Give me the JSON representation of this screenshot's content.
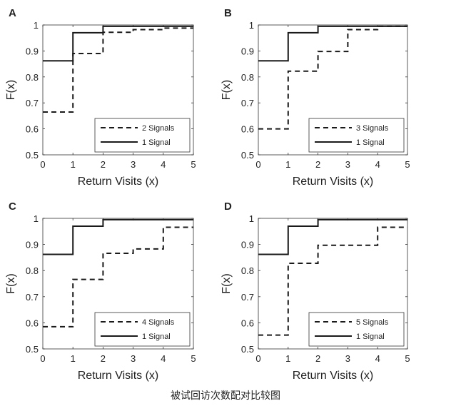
{
  "caption": "被试回访次数配对比较图",
  "chart_data": [
    {
      "type": "line",
      "step": true,
      "panel_label": "A",
      "xlabel": "Return Visits (x)",
      "ylabel": "F(x)",
      "xlim": [
        0,
        5
      ],
      "ylim": [
        0.5,
        1
      ],
      "xticks": [
        0,
        1,
        2,
        3,
        4,
        5
      ],
      "yticks": [
        0.5,
        0.6,
        0.7,
        0.8,
        0.9,
        1
      ],
      "legend_position": "bottom-right",
      "series": [
        {
          "name": "2 Signals",
          "style": "dashed",
          "x": [
            0,
            1,
            2,
            3,
            4,
            5
          ],
          "y": [
            0.665,
            0.89,
            0.972,
            0.982,
            0.988,
            0.988
          ]
        },
        {
          "name": "1 Signal",
          "style": "solid",
          "x": [
            0,
            1,
            2,
            3,
            4,
            5
          ],
          "y": [
            0.862,
            0.97,
            0.995,
            0.995,
            0.995,
            0.995
          ]
        }
      ]
    },
    {
      "type": "line",
      "step": true,
      "panel_label": "B",
      "xlabel": "Return Visits (x)",
      "ylabel": "F(x)",
      "xlim": [
        0,
        5
      ],
      "ylim": [
        0.5,
        1
      ],
      "xticks": [
        0,
        1,
        2,
        3,
        4,
        5
      ],
      "yticks": [
        0.5,
        0.6,
        0.7,
        0.8,
        0.9,
        1
      ],
      "legend_position": "bottom-right",
      "series": [
        {
          "name": "3 Signals",
          "style": "dashed",
          "x": [
            0,
            1,
            2,
            3,
            4,
            5
          ],
          "y": [
            0.6,
            0.822,
            0.898,
            0.982,
            0.995,
            0.995
          ]
        },
        {
          "name": "1 Signal",
          "style": "solid",
          "x": [
            0,
            1,
            2,
            3,
            4,
            5
          ],
          "y": [
            0.862,
            0.97,
            0.995,
            0.995,
            0.995,
            0.995
          ]
        }
      ]
    },
    {
      "type": "line",
      "step": true,
      "panel_label": "C",
      "xlabel": "Return Visits (x)",
      "ylabel": "F(x)",
      "xlim": [
        0,
        5
      ],
      "ylim": [
        0.5,
        1
      ],
      "xticks": [
        0,
        1,
        2,
        3,
        4,
        5
      ],
      "yticks": [
        0.5,
        0.6,
        0.7,
        0.8,
        0.9,
        1
      ],
      "legend_position": "bottom-right",
      "series": [
        {
          "name": "4 Signals",
          "style": "dashed",
          "x": [
            0,
            1,
            2,
            3,
            4,
            5
          ],
          "y": [
            0.585,
            0.766,
            0.866,
            0.883,
            0.966,
            0.966
          ]
        },
        {
          "name": "1 Signal",
          "style": "solid",
          "x": [
            0,
            1,
            2,
            3,
            4,
            5
          ],
          "y": [
            0.862,
            0.97,
            0.995,
            0.995,
            0.995,
            0.995
          ]
        }
      ]
    },
    {
      "type": "line",
      "step": true,
      "panel_label": "D",
      "xlabel": "Return Visits (x)",
      "ylabel": "F(x)",
      "xlim": [
        0,
        5
      ],
      "ylim": [
        0.5,
        1
      ],
      "xticks": [
        0,
        1,
        2,
        3,
        4,
        5
      ],
      "yticks": [
        0.5,
        0.6,
        0.7,
        0.8,
        0.9,
        1
      ],
      "legend_position": "bottom-right",
      "series": [
        {
          "name": "5 Signals",
          "style": "dashed",
          "x": [
            0,
            1,
            2,
            3,
            4,
            5
          ],
          "y": [
            0.553,
            0.828,
            0.897,
            0.897,
            0.966,
            0.966
          ]
        },
        {
          "name": "1 Signal",
          "style": "solid",
          "x": [
            0,
            1,
            2,
            3,
            4,
            5
          ],
          "y": [
            0.862,
            0.97,
            0.995,
            0.995,
            0.995,
            0.995
          ]
        }
      ]
    }
  ]
}
